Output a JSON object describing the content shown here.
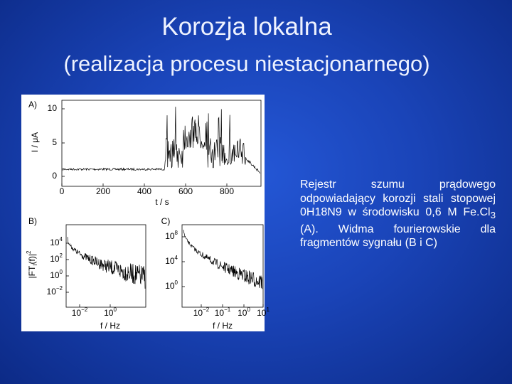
{
  "title": "Korozja lokalna",
  "subtitle": "(realizacja procesu niestacjonarnego)",
  "figure": {
    "panel_a": {
      "label": "A)",
      "ylabel": "I / μA",
      "xlabel": "t / s",
      "yticks": [
        "10",
        "5",
        "0"
      ],
      "xticks": [
        "0",
        "200",
        "400",
        "600",
        "800"
      ]
    },
    "panel_b": {
      "label": "B)",
      "ylabel": {
        "main": "|FT",
        "sub": "I",
        "rest": "(f)|",
        "sup": "2"
      },
      "xlabel": "f / Hz",
      "yticks": [
        {
          "base": "10",
          "exp": "4"
        },
        {
          "base": "10",
          "exp": "2"
        },
        {
          "base": "10",
          "exp": "0"
        },
        {
          "base": "10",
          "exp": "−2"
        }
      ],
      "xticks": [
        {
          "base": "10",
          "exp": "−2"
        },
        {
          "base": "10",
          "exp": "0"
        }
      ]
    },
    "panel_c": {
      "label": "C)",
      "xlabel": "f / Hz",
      "yticks": [
        {
          "base": "10",
          "exp": "8"
        },
        {
          "base": "10",
          "exp": "4"
        },
        {
          "base": "10",
          "exp": "0"
        }
      ],
      "xticks": [
        {
          "base": "10",
          "exp": "−2"
        },
        {
          "base": "10",
          "exp": "−1"
        },
        {
          "base": "10",
          "exp": "0"
        },
        {
          "base": "10",
          "exp": "1"
        }
      ]
    }
  },
  "description": {
    "text": "Rejestr szumu prądowego odpowiadający korozji stali stopowej 0H18N9 w środowisku 0,6 M Fe.Cl",
    "sub": "3",
    "tail": " (A). Widma fourierowskie dla fragmentów sygnału (B i C)"
  }
}
